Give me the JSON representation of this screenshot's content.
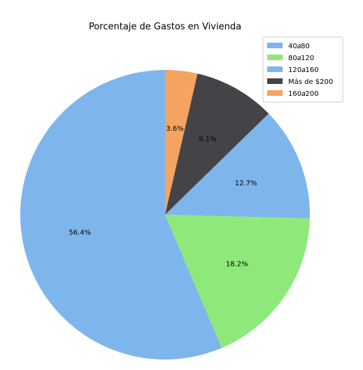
{
  "chart_data": {
    "type": "pie",
    "title": "Porcentaje de Gastos en Vivienda",
    "start_angle_deg": 90,
    "direction": "clockwise",
    "legend_placement": "top-right",
    "slices": [
      {
        "label": "$160 a $200",
        "value": 3.6,
        "pct_label": "3.6%",
        "color": "#f4a460"
      },
      {
        "label": "Más de $200",
        "value": 9.1,
        "pct_label": "9.1%",
        "color": "#444448"
      },
      {
        "label": "$120 a $160",
        "value": 12.7,
        "pct_label": "12.7%",
        "color": "#7eb5ed"
      },
      {
        "label": "$80 a $120",
        "value": 18.2,
        "pct_label": "18.2%",
        "color": "#8ee97a"
      },
      {
        "label": "$40 a $80",
        "value": 56.4,
        "pct_label": "56.4%",
        "color": "#7eb5ed"
      }
    ],
    "legend_order": [
      {
        "text": "40𝑎80",
        "color": "#7eb5ed"
      },
      {
        "text": "80𝑎120",
        "color": "#8ee97a"
      },
      {
        "text": "120𝑎160",
        "color": "#7eb5ed"
      },
      {
        "text": "Más de $200",
        "color": "#444448"
      },
      {
        "text": "160𝑎200",
        "color": "#f4a460"
      }
    ]
  }
}
